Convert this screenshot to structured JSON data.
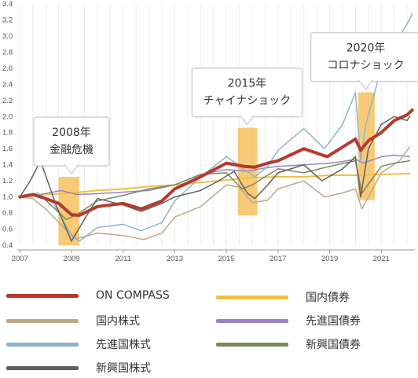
{
  "chart_data": {
    "type": "line",
    "xlim": [
      2006.9,
      2022.3
    ],
    "ylim": [
      0.4,
      3.4
    ],
    "yticks": [
      "0.4",
      "0.6",
      "0.8",
      "1.0",
      "1.2",
      "1.4",
      "1.6",
      "1.8",
      "2.0",
      "2.2",
      "2.4",
      "2.6",
      "2.8",
      "3.0",
      "3.2",
      "3.4"
    ],
    "xticks": [
      "2007",
      "2009",
      "2011",
      "2013",
      "2015",
      "2017",
      "2019",
      "2021"
    ],
    "grid": "vertical",
    "highlight_periods": [
      {
        "x0": 2008.5,
        "x1": 2009.3,
        "y0": 0.4,
        "y1": 1.25
      },
      {
        "x0": 2015.45,
        "x1": 2016.2,
        "y0": 0.77,
        "y1": 1.86
      },
      {
        "x0": 2020.1,
        "x1": 2020.75,
        "y0": 0.96,
        "y1": 2.3
      }
    ],
    "annotations": [
      {
        "lines": [
          "2008年",
          "金融危機"
        ],
        "anchor_x": 2009.0,
        "anchor_y": 1.25
      },
      {
        "lines": [
          "2015年",
          "チャイナショック"
        ],
        "anchor_x": 2015.8,
        "anchor_y": 1.86
      },
      {
        "lines": [
          "2020年",
          "コロナショック"
        ],
        "anchor_x": 2020.4,
        "anchor_y": 2.3
      }
    ],
    "series": [
      {
        "name": "国内債券",
        "color": "#f0c040",
        "width": 2,
        "x": [
          2007,
          2008,
          2009,
          2010,
          2011,
          2012,
          2013,
          2014,
          2015,
          2016,
          2017,
          2018,
          2019,
          2020,
          2021,
          2022.1
        ],
        "y": [
          1.0,
          1.03,
          1.05,
          1.08,
          1.1,
          1.13,
          1.15,
          1.18,
          1.21,
          1.24,
          1.25,
          1.25,
          1.27,
          1.27,
          1.28,
          1.29
        ]
      },
      {
        "name": "先進国債券",
        "color": "#9b82c4",
        "width": 1.5,
        "x": [
          2007,
          2007.8,
          2008.6,
          2009.2,
          2010,
          2011,
          2012,
          2013,
          2014,
          2015,
          2015.8,
          2016.5,
          2017,
          2018,
          2019,
          2019.5,
          2020,
          2020.3,
          2021,
          2021.5,
          2022.1
        ],
        "y": [
          1.0,
          1.03,
          1.08,
          1.03,
          1.04,
          1.06,
          1.08,
          1.15,
          1.28,
          1.34,
          1.32,
          1.36,
          1.38,
          1.4,
          1.42,
          1.44,
          1.47,
          1.42,
          1.5,
          1.52,
          1.5
        ]
      },
      {
        "name": "国内株式",
        "color": "#bfa888",
        "width": 1.5,
        "x": [
          2007,
          2007.5,
          2008,
          2008.7,
          2009.2,
          2010,
          2011,
          2011.8,
          2012.5,
          2013,
          2014,
          2015,
          2015.5,
          2016,
          2016.6,
          2017,
          2018,
          2018.8,
          2019.5,
          2020,
          2020.25,
          2021,
          2021.7,
          2022.1
        ],
        "y": [
          1.0,
          0.98,
          0.85,
          0.62,
          0.48,
          0.55,
          0.52,
          0.47,
          0.55,
          0.75,
          0.88,
          1.15,
          1.12,
          0.93,
          0.96,
          1.1,
          1.2,
          1.0,
          1.05,
          1.1,
          0.85,
          1.3,
          1.45,
          1.62
        ]
      },
      {
        "name": "先進国株式",
        "color": "#8fb3c8",
        "width": 1.5,
        "x": [
          2007,
          2007.7,
          2008.3,
          2009,
          2009.3,
          2010,
          2011,
          2011.7,
          2012.5,
          2013,
          2014,
          2015,
          2015.7,
          2016.1,
          2016.6,
          2017,
          2018,
          2018.8,
          2019.5,
          2020,
          2020.2,
          2020.4,
          2021,
          2021.5,
          2022,
          2022.2
        ],
        "y": [
          1.0,
          1.05,
          0.92,
          0.52,
          0.45,
          0.62,
          0.66,
          0.58,
          0.68,
          0.95,
          1.25,
          1.5,
          1.34,
          1.25,
          1.38,
          1.58,
          1.85,
          1.6,
          1.9,
          2.3,
          1.45,
          1.9,
          2.6,
          2.9,
          3.15,
          3.28
        ]
      },
      {
        "name": "新興国債券",
        "color": "#7a8a5c",
        "width": 1.5,
        "x": [
          2007,
          2007.8,
          2008.8,
          2009.2,
          2010,
          2011,
          2012,
          2013,
          2014,
          2015,
          2015.6,
          2016,
          2017,
          2018,
          2019,
          2020,
          2020.25,
          2021,
          2021.5,
          2022.1
        ],
        "y": [
          1.0,
          1.02,
          0.72,
          0.78,
          0.95,
          1.02,
          1.1,
          1.15,
          1.28,
          1.3,
          1.1,
          1.15,
          1.35,
          1.3,
          1.38,
          1.45,
          1.05,
          1.38,
          1.42,
          1.45
        ]
      },
      {
        "name": "新興国株式",
        "color": "#5e625c",
        "width": 1.5,
        "x": [
          2007,
          2007.4,
          2007.8,
          2008.4,
          2009,
          2009.5,
          2010,
          2011,
          2011.7,
          2012.5,
          2013,
          2014,
          2014.7,
          2015.3,
          2015.8,
          2016.1,
          2016.6,
          2017,
          2018,
          2018.7,
          2019.5,
          2020,
          2020.2,
          2020.5,
          2021,
          2021.5,
          2022,
          2022.1
        ],
        "y": [
          1.0,
          1.2,
          1.45,
          0.9,
          0.45,
          0.72,
          0.98,
          0.9,
          0.82,
          0.92,
          1.0,
          1.08,
          1.2,
          1.32,
          1.05,
          0.98,
          1.15,
          1.3,
          1.4,
          1.2,
          1.35,
          1.5,
          1.0,
          1.6,
          1.9,
          2.0,
          1.95,
          2.0
        ]
      },
      {
        "name": "ON COMPASS",
        "color": "#b33a2e",
        "width": 4,
        "x": [
          2007,
          2007.5,
          2008,
          2008.5,
          2009,
          2009.3,
          2010,
          2011,
          2011.7,
          2012.5,
          2013,
          2014,
          2015,
          2015.7,
          2016.1,
          2016.6,
          2017,
          2018,
          2018.9,
          2019.5,
          2020,
          2020.2,
          2020.5,
          2021,
          2021.5,
          2022,
          2022.2
        ],
        "y": [
          1.0,
          1.03,
          0.98,
          0.92,
          0.78,
          0.77,
          0.88,
          0.92,
          0.85,
          0.95,
          1.1,
          1.25,
          1.42,
          1.38,
          1.37,
          1.42,
          1.45,
          1.6,
          1.5,
          1.62,
          1.72,
          1.58,
          1.7,
          1.8,
          1.95,
          2.02,
          2.08
        ]
      }
    ]
  },
  "legend": {
    "items": [
      {
        "label": "ON COMPASS",
        "color": "#b33a2e"
      },
      {
        "label": "国内債券",
        "color": "#f0c040"
      },
      {
        "label": "国内株式",
        "color": "#bfa888"
      },
      {
        "label": "先進国債券",
        "color": "#9b82c4"
      },
      {
        "label": "先進国株式",
        "color": "#8fb3c8"
      },
      {
        "label": "新興国債券",
        "color": "#7a8a5c"
      },
      {
        "label": "新興国株式",
        "color": "#5e625c"
      }
    ]
  }
}
